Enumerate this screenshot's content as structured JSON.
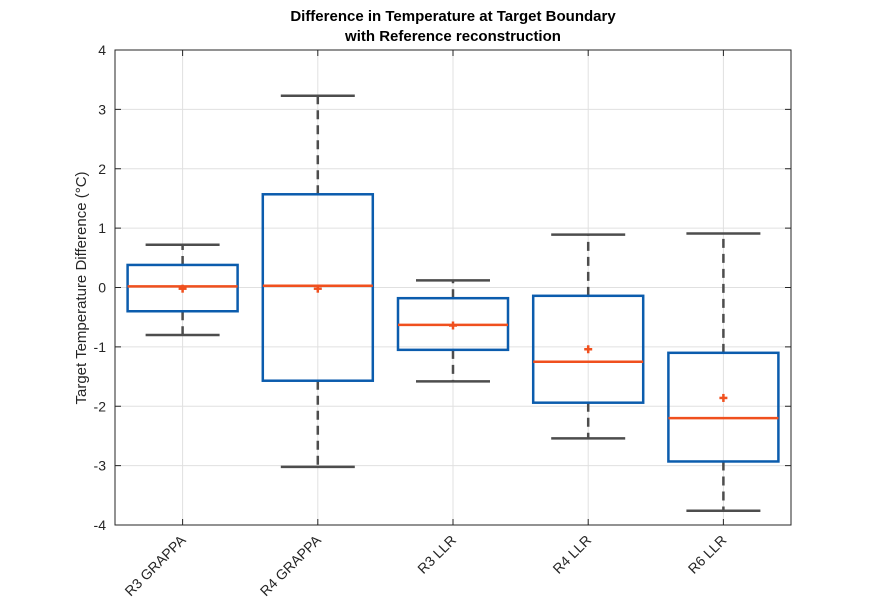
{
  "chart_data": {
    "type": "box",
    "title": [
      "Difference in Temperature at Target Boundary",
      "with Reference reconstruction"
    ],
    "xlabel": "",
    "ylabel": "Target Temperature Difference (°C)",
    "ylim": [
      -4,
      4
    ],
    "yticks": [
      -4,
      -3,
      -2,
      -1,
      0,
      1,
      2,
      3,
      4
    ],
    "ytick_labels": [
      "-4",
      "-3",
      "-2",
      "-1",
      "0",
      "1",
      "2",
      "3",
      "4"
    ],
    "grid": true,
    "categories": [
      "R3 GRAPPA",
      "R4 GRAPPA",
      "R3 LLR",
      "R4 LLR",
      "R6 LLR"
    ],
    "boxes": [
      {
        "whisker_low": -0.8,
        "q1": -0.4,
        "median": 0.02,
        "q3": 0.38,
        "whisker_high": 0.72,
        "mean": -0.02
      },
      {
        "whisker_low": -3.02,
        "q1": -1.57,
        "median": 0.03,
        "q3": 1.57,
        "whisker_high": 3.23,
        "mean": -0.02
      },
      {
        "whisker_low": -1.58,
        "q1": -1.05,
        "median": -0.63,
        "q3": -0.18,
        "whisker_high": 0.12,
        "mean": -0.64
      },
      {
        "whisker_low": -2.54,
        "q1": -1.94,
        "median": -1.25,
        "q3": -0.14,
        "whisker_high": 0.89,
        "mean": -1.04
      },
      {
        "whisker_low": -3.76,
        "q1": -2.93,
        "median": -2.2,
        "q3": -1.1,
        "whisker_high": 0.91,
        "mean": -1.86
      }
    ],
    "colors": {
      "box": "#0b5cad",
      "median": "#f0501e",
      "mean": "#f0501e",
      "whisker": "#4d4d4d",
      "grid": "#e0e0e0",
      "axis": "#262626"
    }
  }
}
